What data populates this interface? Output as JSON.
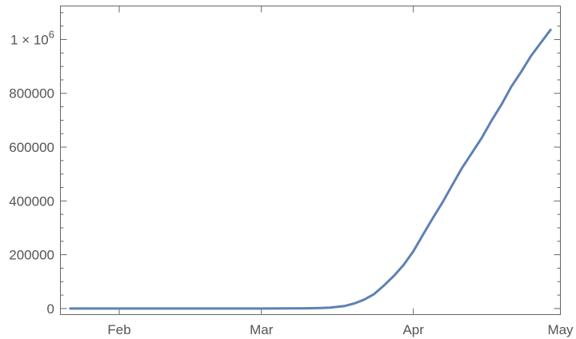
{
  "chart_data": {
    "type": "line",
    "title": "",
    "xlabel": "",
    "ylabel": "",
    "xlim": [
      "2020-01-20",
      "2020-05-01"
    ],
    "ylim": [
      -22600,
      1124700
    ],
    "grid": false,
    "x_ticks": [
      {
        "date": "2020-02-01",
        "label": "Feb"
      },
      {
        "date": "2020-03-01",
        "label": "Mar"
      },
      {
        "date": "2020-04-01",
        "label": "Apr"
      },
      {
        "date": "2020-05-01",
        "label": "May"
      }
    ],
    "y_ticks": [
      {
        "value": 0,
        "label": "0"
      },
      {
        "value": 200000,
        "label": "200000"
      },
      {
        "value": 400000,
        "label": "400000"
      },
      {
        "value": 600000,
        "label": "600000"
      },
      {
        "value": 800000,
        "label": "800000"
      },
      {
        "value": 1000000,
        "label": "1 × 10",
        "sup": "6"
      }
    ],
    "series": [
      {
        "color": "#5e81b5",
        "x": [
          "2020-01-22",
          "2020-02-01",
          "2020-02-15",
          "2020-03-01",
          "2020-03-05",
          "2020-03-10",
          "2020-03-13",
          "2020-03-15",
          "2020-03-18",
          "2020-03-20",
          "2020-03-22",
          "2020-03-24",
          "2020-03-26",
          "2020-03-28",
          "2020-03-30",
          "2020-04-01",
          "2020-04-03",
          "2020-04-05",
          "2020-04-07",
          "2020-04-09",
          "2020-04-11",
          "2020-04-13",
          "2020-04-15",
          "2020-04-17",
          "2020-04-19",
          "2020-04-21",
          "2020-04-23",
          "2020-04-25",
          "2020-04-27",
          "2020-04-29"
        ],
        "y": [
          1,
          8,
          15,
          75,
          217,
          994,
          2200,
          3680,
          9400,
          19100,
          33300,
          53700,
          85500,
          121000,
          161800,
          213000,
          275500,
          337000,
          396000,
          461000,
          525000,
          580000,
          636000,
          700000,
          759000,
          825000,
          880000,
          939000,
          988000,
          1036000
        ]
      }
    ]
  }
}
